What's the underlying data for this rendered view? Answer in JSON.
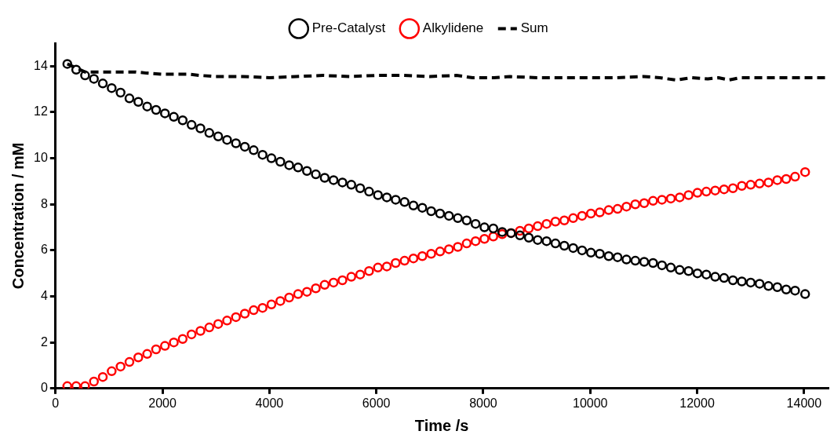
{
  "chart_data": {
    "type": "scatter",
    "xlabel": "Time /s",
    "ylabel": "Concentration / mM",
    "x": [
      220,
      386,
      552,
      718,
      884,
      1050,
      1216,
      1382,
      1548,
      1714,
      1880,
      2046,
      2212,
      2378,
      2544,
      2710,
      2876,
      3042,
      3208,
      3374,
      3540,
      3706,
      3872,
      4038,
      4204,
      4370,
      4536,
      4702,
      4868,
      5034,
      5200,
      5366,
      5532,
      5698,
      5864,
      6030,
      6196,
      6362,
      6528,
      6694,
      6860,
      7026,
      7192,
      7358,
      7524,
      7690,
      7856,
      8022,
      8188,
      8354,
      8520,
      8686,
      8852,
      9018,
      9184,
      9350,
      9516,
      9682,
      9848,
      10014,
      10180,
      10346,
      10512,
      10678,
      10844,
      11010,
      11176,
      11342,
      11508,
      11674,
      11840,
      12006,
      12172,
      12338,
      12504,
      12670,
      12836,
      13002,
      13168,
      13334,
      13500,
      13666,
      13832,
      14020
    ],
    "series": [
      {
        "name": "Pre-Catalyst",
        "color": "#000000",
        "values": [
          14.1,
          13.85,
          13.6,
          13.45,
          13.25,
          13.05,
          12.85,
          12.6,
          12.45,
          12.25,
          12.1,
          11.95,
          11.8,
          11.65,
          11.45,
          11.3,
          11.1,
          10.95,
          10.8,
          10.65,
          10.5,
          10.35,
          10.15,
          10.0,
          9.85,
          9.7,
          9.6,
          9.45,
          9.3,
          9.15,
          9.05,
          8.95,
          8.85,
          8.7,
          8.55,
          8.4,
          8.3,
          8.2,
          8.1,
          7.95,
          7.85,
          7.7,
          7.6,
          7.5,
          7.4,
          7.3,
          7.15,
          7.0,
          6.95,
          6.8,
          6.75,
          6.65,
          6.55,
          6.45,
          6.4,
          6.3,
          6.2,
          6.1,
          6.0,
          5.9,
          5.85,
          5.75,
          5.7,
          5.6,
          5.55,
          5.5,
          5.45,
          5.35,
          5.25,
          5.15,
          5.1,
          5.0,
          4.95,
          4.85,
          4.8,
          4.7,
          4.65,
          4.6,
          4.55,
          4.45,
          4.4,
          4.3,
          4.25,
          4.1
        ]
      },
      {
        "name": "Alkylidene",
        "color": "#ff0000",
        "values": [
          0.1,
          0.1,
          0.1,
          0.3,
          0.5,
          0.75,
          0.95,
          1.15,
          1.35,
          1.5,
          1.7,
          1.85,
          2.0,
          2.15,
          2.35,
          2.5,
          2.65,
          2.8,
          2.95,
          3.1,
          3.25,
          3.4,
          3.5,
          3.65,
          3.8,
          3.95,
          4.1,
          4.2,
          4.35,
          4.5,
          4.6,
          4.7,
          4.85,
          4.95,
          5.1,
          5.25,
          5.3,
          5.45,
          5.55,
          5.65,
          5.75,
          5.85,
          5.95,
          6.05,
          6.15,
          6.3,
          6.4,
          6.5,
          6.6,
          6.7,
          6.75,
          6.85,
          6.95,
          7.05,
          7.15,
          7.25,
          7.3,
          7.4,
          7.5,
          7.6,
          7.65,
          7.75,
          7.8,
          7.9,
          8.0,
          8.05,
          8.15,
          8.2,
          8.25,
          8.3,
          8.4,
          8.5,
          8.55,
          8.6,
          8.65,
          8.7,
          8.8,
          8.85,
          8.9,
          8.95,
          9.05,
          9.1,
          9.2,
          9.4
        ]
      },
      {
        "name": "Sum",
        "type": "line",
        "color": "#000000",
        "line_style": "dashed",
        "marker": "none",
        "x": [
          220,
          550,
          1000,
          1500,
          1700,
          2000,
          2500,
          2700,
          3000,
          3500,
          4000,
          4500,
          5000,
          5500,
          6000,
          6500,
          7000,
          7500,
          7800,
          8200,
          8500,
          9000,
          9500,
          10000,
          10500,
          11000,
          11300,
          11600,
          11900,
          12200,
          12400,
          12600,
          12800,
          13000,
          13500,
          14000,
          14420
        ],
        "values": [
          14.1,
          13.75,
          13.75,
          13.75,
          13.7,
          13.65,
          13.65,
          13.6,
          13.55,
          13.55,
          13.5,
          13.55,
          13.6,
          13.55,
          13.6,
          13.6,
          13.55,
          13.6,
          13.5,
          13.5,
          13.55,
          13.5,
          13.5,
          13.5,
          13.5,
          13.55,
          13.5,
          13.4,
          13.5,
          13.45,
          13.5,
          13.4,
          13.5,
          13.5,
          13.5,
          13.5,
          13.5
        ]
      }
    ],
    "xlim": [
      0,
      14450
    ],
    "xticks": [
      0,
      2000,
      4000,
      6000,
      8000,
      10000,
      12000,
      14000
    ],
    "ylim": [
      0,
      15
    ],
    "yticks": [
      0,
      2,
      4,
      6,
      8,
      10,
      12,
      14
    ],
    "marker": "circle",
    "grid": false,
    "legend": "top"
  }
}
